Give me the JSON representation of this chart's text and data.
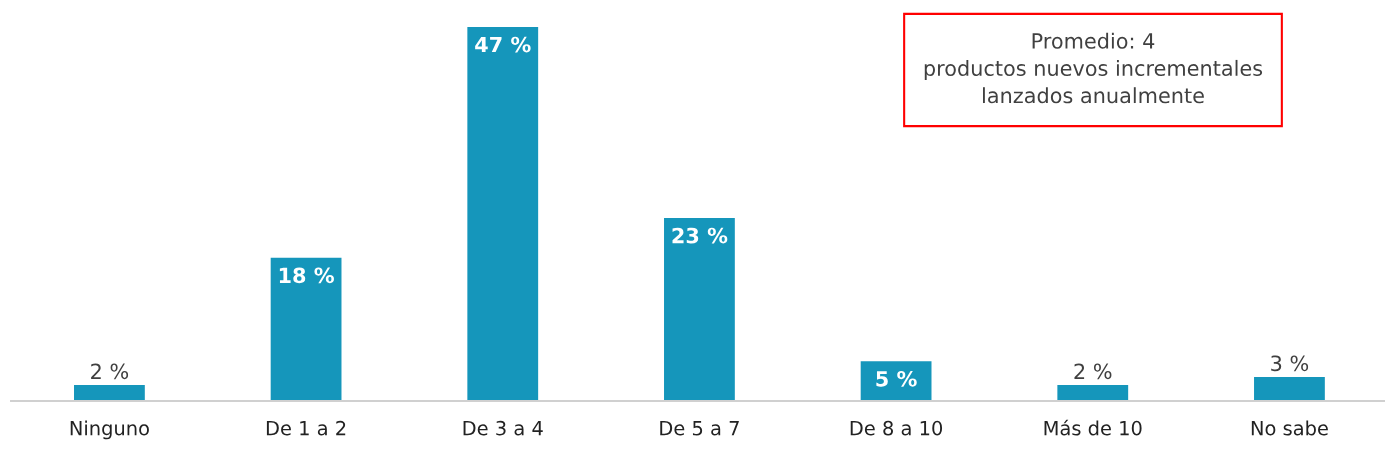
{
  "chart_data": {
    "type": "bar",
    "categories": [
      "Ninguno",
      "De 1 a 2",
      "De 3 a 4",
      "De 5 a 7",
      "De 8 a 10",
      "Más de 10",
      "No sabe"
    ],
    "values": [
      2,
      18,
      47,
      23,
      5,
      2,
      3
    ],
    "value_labels": [
      "2 %",
      "18 %",
      "47 %",
      "23 %",
      "5 %",
      "2 %",
      "3 %"
    ],
    "color": "#1596bb",
    "annotations": [
      "Promedio: 4\nproductos nuevos incrementales\nlanzados anualmente"
    ],
    "grid": false,
    "legend": false
  }
}
